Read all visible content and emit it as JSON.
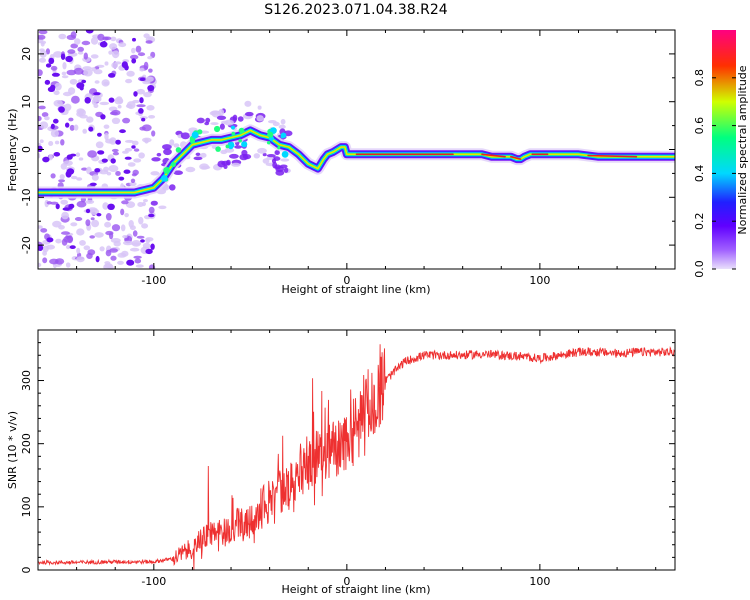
{
  "title": "S126.2023.071.04.38.R24",
  "chart_data": [
    {
      "type": "heatmap",
      "title": "S126.2023.071.04.38.R24",
      "xlabel": "Height of straight line (km)",
      "ylabel": "Frequency (Hz)",
      "xlim": [
        -160,
        170
      ],
      "ylim": [
        -25,
        25
      ],
      "x_ticks": [
        -100,
        0,
        100
      ],
      "y_ticks": [
        -20,
        -10,
        0,
        10,
        20
      ],
      "colorbar": {
        "label": "Normalized spectral amplitude",
        "range": [
          0,
          1
        ],
        "ticks": [
          0.0,
          0.2,
          0.4,
          0.6,
          0.8
        ],
        "colors": [
          "#e9e0fb",
          "#8000ff",
          "#2020ff",
          "#00e0ff",
          "#00ff60",
          "#e0ff00",
          "#ff2000",
          "#ff0080"
        ]
      },
      "ridge": {
        "x": [
          -160,
          -150,
          -140,
          -130,
          -120,
          -110,
          -100,
          -95,
          -90,
          -85,
          -80,
          -75,
          -70,
          -65,
          -60,
          -55,
          -50,
          -45,
          -40,
          -35,
          -30,
          -25,
          -20,
          -15,
          -12,
          -10,
          -7,
          -5,
          -3,
          -1,
          0,
          10,
          20,
          30,
          40,
          50,
          60,
          70,
          75,
          80,
          85,
          88,
          90,
          92,
          95,
          100,
          110,
          120,
          130,
          140,
          150,
          160,
          170
        ],
        "y": [
          -9,
          -9,
          -9,
          -9,
          -9,
          -9,
          -8,
          -6,
          -3,
          -1,
          1,
          1.5,
          2,
          2,
          2.5,
          3,
          4,
          3,
          2.5,
          1,
          0.5,
          -1,
          -3,
          -4,
          -2,
          -1,
          -0.5,
          0,
          0.5,
          0.5,
          -1,
          -1,
          -1,
          -1,
          -1,
          -1,
          -1,
          -1,
          -1.5,
          -1.5,
          -1.5,
          -2,
          -2,
          -1.5,
          -1,
          -1,
          -1,
          -1,
          -1.5,
          -1.5,
          -1.5,
          -1.5,
          -1.5
        ]
      }
    },
    {
      "type": "line",
      "xlabel": "Height of straight line (km)",
      "ylabel": "SNR (10 * v/v)",
      "xlim": [
        -160,
        170
      ],
      "ylim": [
        0,
        380
      ],
      "x_ticks": [
        -100,
        0,
        100
      ],
      "y_ticks": [
        0,
        100,
        200,
        300
      ],
      "series": [
        {
          "color": "#ee3030",
          "x": [
            -160,
            -140,
            -120,
            -100,
            -90,
            -80,
            -70,
            -60,
            -50,
            -40,
            -30,
            -20,
            -10,
            0,
            10,
            20,
            30,
            40,
            50,
            60,
            70,
            80,
            90,
            100,
            110,
            120,
            130,
            140,
            150,
            160,
            170
          ],
          "y": [
            12,
            12,
            13,
            13,
            18,
            35,
            60,
            65,
            80,
            110,
            140,
            170,
            185,
            200,
            250,
            300,
            330,
            340,
            340,
            340,
            342,
            340,
            338,
            335,
            340,
            345,
            345,
            343,
            345,
            345,
            345
          ]
        }
      ]
    }
  ]
}
